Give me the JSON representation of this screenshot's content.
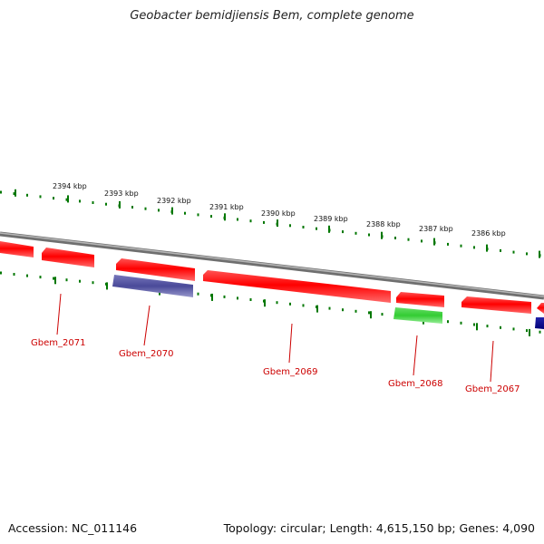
{
  "title": "Geobacter bemidjiensis Bem, complete genome",
  "footer": {
    "accession": "Accession: NC_011146",
    "summary": "Topology: circular; Length: 4,615,150 bp; Genes: 4,090"
  },
  "ticks": [
    {
      "label": "2394 kbp"
    },
    {
      "label": "2393 kbp"
    },
    {
      "label": "2392 kbp"
    },
    {
      "label": "2391 kbp"
    },
    {
      "label": "2390 kbp"
    },
    {
      "label": "2389 kbp"
    },
    {
      "label": "2388 kbp"
    },
    {
      "label": "2387 kbp"
    },
    {
      "label": "2386 kbp"
    }
  ],
  "genes": [
    {
      "label": "Gbem_2071"
    },
    {
      "label": "Gbem_2070"
    },
    {
      "label": "Gbem_2069"
    },
    {
      "label": "Gbem_2068"
    },
    {
      "label": "Gbem_2067"
    }
  ],
  "colors": {
    "backbone": "#8c8c8c",
    "forward_gene": "#ff0000",
    "reverse_gene": "#ff0000",
    "purple_feature": "#4a4a99",
    "green_feature": "#33cc33",
    "navy_feature": "#000099",
    "tick": "#007700",
    "label": "#cc0000"
  }
}
